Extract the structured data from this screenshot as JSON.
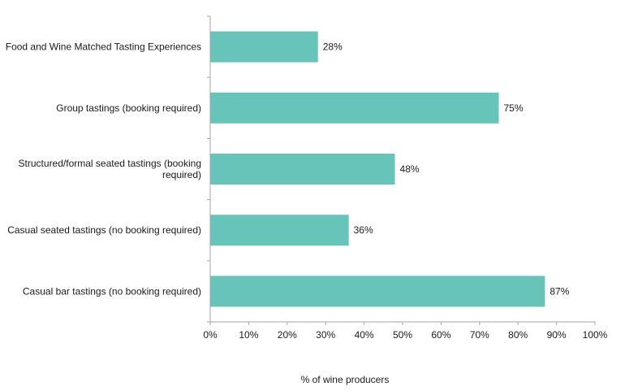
{
  "chart_data": {
    "type": "bar",
    "orientation": "horizontal",
    "categories": [
      "Food and Wine Matched Tasting Experiences",
      "Group tastings (booking required)",
      "Structured/formal seated tastings (booking required)",
      "Casual seated tastings (no booking required)",
      "Casual bar tastings (no booking required)"
    ],
    "category_lines": [
      [
        "Food and Wine Matched Tasting Experiences"
      ],
      [
        "Group tastings (booking required)"
      ],
      [
        "Structured/formal seated tastings (booking",
        "required)"
      ],
      [
        "Casual seated tastings (no booking required)"
      ],
      [
        "Casual bar tastings (no booking required)"
      ]
    ],
    "values": [
      28,
      75,
      48,
      36,
      87
    ],
    "data_labels": [
      "28%",
      "75%",
      "48%",
      "36%",
      "87%"
    ],
    "xlim": [
      0,
      100
    ],
    "xticks": [
      0,
      10,
      20,
      30,
      40,
      50,
      60,
      70,
      80,
      90,
      100
    ],
    "xtick_labels": [
      "0%",
      "10%",
      "20%",
      "30%",
      "40%",
      "50%",
      "60%",
      "70%",
      "80%",
      "90%",
      "100%"
    ],
    "xlabel": "% of wine producers",
    "ylabel": "",
    "title": "",
    "grid": false,
    "legend": "none",
    "colors": {
      "bar": "#66c5b8",
      "axis": "#a6a6a6"
    }
  }
}
